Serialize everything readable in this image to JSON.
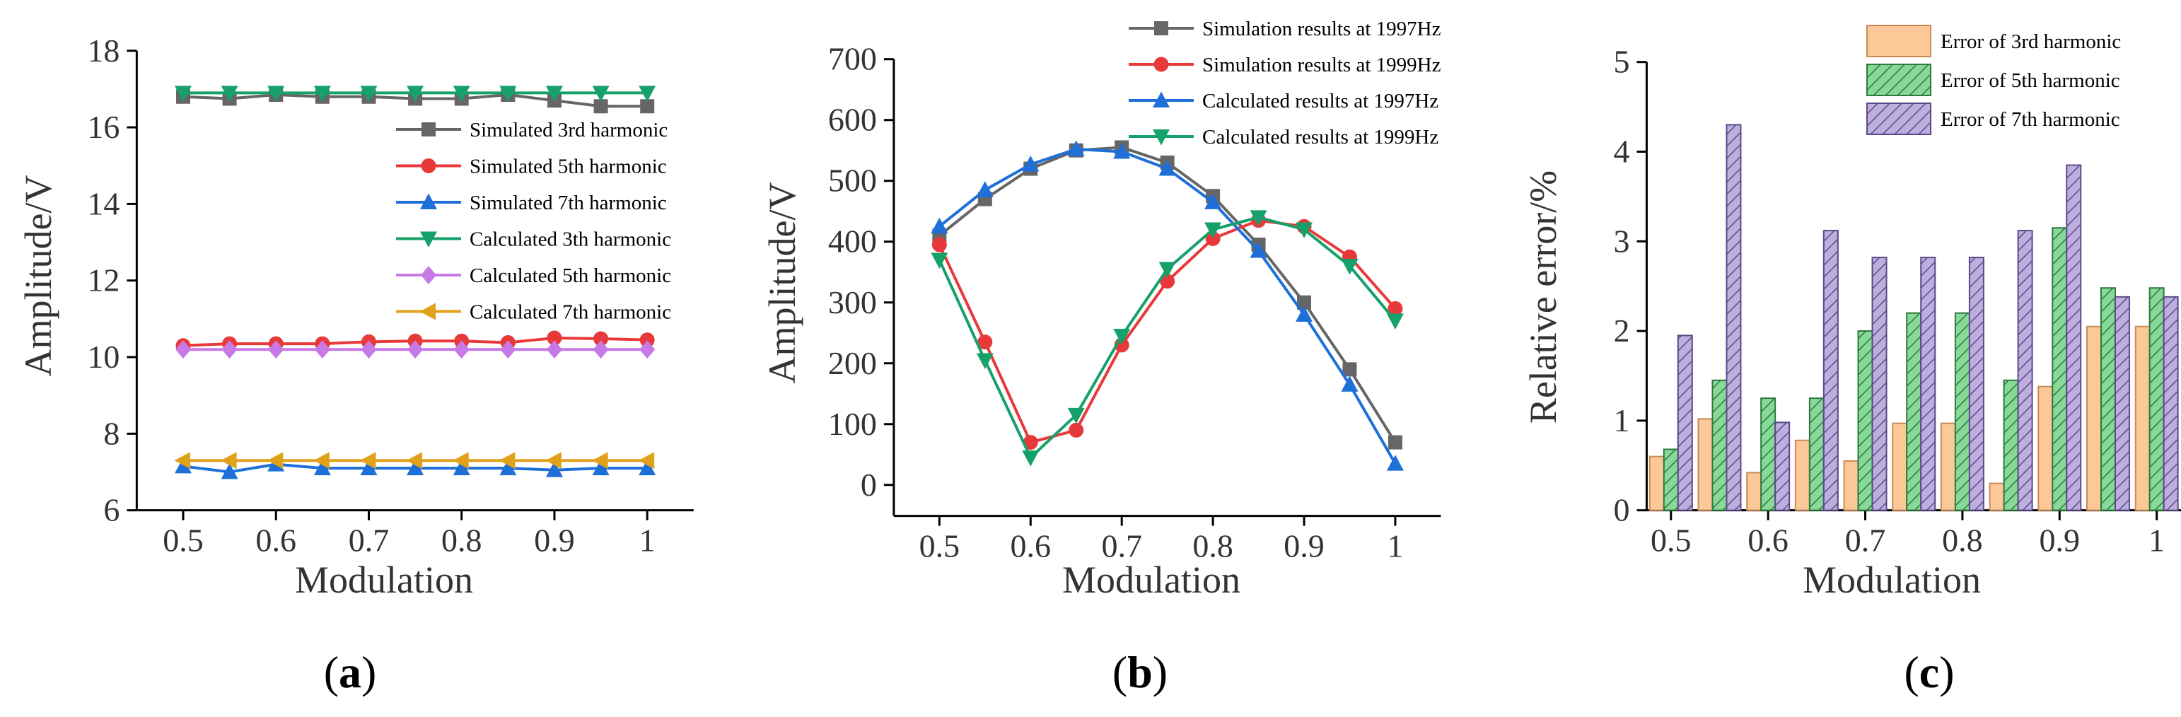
{
  "chart_data": [
    {
      "type": "line",
      "panel_label": "(a)",
      "panel_letter": "a",
      "xlabel": "Modulation",
      "ylabel": "Amplitude/V",
      "xlim": [
        0.45,
        1.05
      ],
      "ylim": [
        6,
        18
      ],
      "xticks": [
        0.5,
        0.6,
        0.7,
        0.8,
        0.9,
        1
      ],
      "xtick_labels": [
        "0.5",
        "0.6",
        "0.7",
        "0.8",
        "0.9",
        "1"
      ],
      "yticks": [
        6,
        8,
        10,
        12,
        14,
        16,
        18
      ],
      "ytick_labels": [
        "6",
        "8",
        "10",
        "12",
        "14",
        "16",
        "18"
      ],
      "legend_position": "right",
      "x": [
        0.5,
        0.55,
        0.6,
        0.65,
        0.7,
        0.75,
        0.8,
        0.85,
        0.9,
        0.95,
        1.0
      ],
      "series": [
        {
          "name": "Simulated 3rd harmonic",
          "color": "#666666",
          "marker": "square",
          "values": [
            16.8,
            16.75,
            16.85,
            16.8,
            16.8,
            16.75,
            16.75,
            16.85,
            16.7,
            16.55,
            16.55
          ]
        },
        {
          "name": "Simulated 5th harmonic",
          "color": "#e8393a",
          "marker": "circle",
          "values": [
            10.3,
            10.35,
            10.35,
            10.35,
            10.4,
            10.42,
            10.42,
            10.38,
            10.5,
            10.48,
            10.45
          ]
        },
        {
          "name": "Simulated 7th harmonic",
          "color": "#1f6fd9",
          "marker": "triangle-up",
          "values": [
            7.15,
            7.0,
            7.2,
            7.1,
            7.1,
            7.1,
            7.1,
            7.1,
            7.05,
            7.1,
            7.1
          ]
        },
        {
          "name": "Calculated 3th harmonic",
          "color": "#16a06a",
          "marker": "triangle-down",
          "values": [
            16.9,
            16.9,
            16.9,
            16.9,
            16.9,
            16.9,
            16.9,
            16.9,
            16.9,
            16.9,
            16.9
          ]
        },
        {
          "name": "Calculated 5th harmonic",
          "color": "#c77ae6",
          "marker": "diamond",
          "values": [
            10.2,
            10.2,
            10.2,
            10.2,
            10.2,
            10.2,
            10.2,
            10.2,
            10.2,
            10.2,
            10.2
          ]
        },
        {
          "name": "Calculated 7th harmonic",
          "color": "#e0a21a",
          "marker": "triangle-left",
          "values": [
            7.3,
            7.3,
            7.3,
            7.3,
            7.3,
            7.3,
            7.3,
            7.3,
            7.3,
            7.3,
            7.3
          ]
        }
      ]
    },
    {
      "type": "line",
      "panel_label": "(b)",
      "panel_letter": "b",
      "xlabel": "Modulation",
      "ylabel": "Amplitude/V",
      "xlim": [
        0.45,
        1.05
      ],
      "ylim": [
        -50,
        700
      ],
      "xticks": [
        0.5,
        0.6,
        0.7,
        0.8,
        0.9,
        1
      ],
      "xtick_labels": [
        "0.5",
        "0.6",
        "0.7",
        "0.8",
        "0.9",
        "1"
      ],
      "yticks": [
        0,
        100,
        200,
        300,
        400,
        500,
        600,
        700
      ],
      "ytick_labels": [
        "0",
        "100",
        "200",
        "300",
        "400",
        "500",
        "600",
        "700"
      ],
      "legend_position": "top-right",
      "x": [
        0.5,
        0.55,
        0.6,
        0.65,
        0.7,
        0.75,
        0.8,
        0.85,
        0.9,
        0.95,
        1.0
      ],
      "series": [
        {
          "name": "Simulation results at 1997Hz",
          "color": "#666666",
          "marker": "square",
          "values": [
            410,
            470,
            520,
            550,
            555,
            530,
            475,
            395,
            300,
            190,
            70
          ]
        },
        {
          "name": "Simulation results at 1999Hz",
          "color": "#e8393a",
          "marker": "circle",
          "values": [
            395,
            235,
            70,
            90,
            230,
            335,
            405,
            435,
            425,
            375,
            290
          ]
        },
        {
          "name": "Calculated results at 1997Hz",
          "color": "#1f6fd9",
          "marker": "triangle-up",
          "values": [
            425,
            485,
            527,
            552,
            548,
            520,
            465,
            385,
            280,
            165,
            35
          ]
        },
        {
          "name": "Calculated results at 1999Hz",
          "color": "#16a06a",
          "marker": "triangle-down",
          "values": [
            370,
            205,
            45,
            115,
            245,
            355,
            420,
            440,
            420,
            360,
            270
          ]
        }
      ]
    },
    {
      "type": "bar",
      "panel_label": "(c)",
      "panel_letter": "c",
      "xlabel": "Modulation",
      "ylabel": "Relative error/%",
      "xlim": [
        0.475,
        1.025
      ],
      "ylim": [
        0,
        5
      ],
      "xticks": [
        0.5,
        0.6,
        0.7,
        0.8,
        0.9,
        1
      ],
      "xtick_labels": [
        "0.5",
        "0.6",
        "0.7",
        "0.8",
        "0.9",
        "1"
      ],
      "yticks": [
        0,
        1,
        2,
        3,
        4,
        5
      ],
      "ytick_labels": [
        "0",
        "1",
        "2",
        "3",
        "4",
        "5"
      ],
      "legend_position": "top-right",
      "x": [
        0.5,
        0.55,
        0.6,
        0.65,
        0.7,
        0.75,
        0.8,
        0.85,
        0.9,
        0.95,
        1.0
      ],
      "series": [
        {
          "name": "Error of 3rd harmonic",
          "color": "#fcc898",
          "pattern": "solid",
          "values": [
            0.6,
            1.02,
            0.42,
            0.78,
            0.55,
            0.97,
            0.97,
            0.3,
            1.38,
            2.05,
            2.05
          ]
        },
        {
          "name": "Error of 5th harmonic",
          "color": "#88d898",
          "pattern": "diagonal-hatch",
          "values": [
            0.68,
            1.45,
            1.25,
            1.25,
            2.0,
            2.2,
            2.2,
            1.45,
            3.15,
            2.48,
            2.48
          ]
        },
        {
          "name": "Error of 7th harmonic",
          "color": "#bdaede",
          "pattern": "diagonal-hatch",
          "values": [
            1.95,
            4.3,
            0.98,
            3.12,
            2.82,
            2.82,
            2.82,
            3.12,
            3.85,
            2.38,
            2.38
          ]
        }
      ]
    }
  ]
}
